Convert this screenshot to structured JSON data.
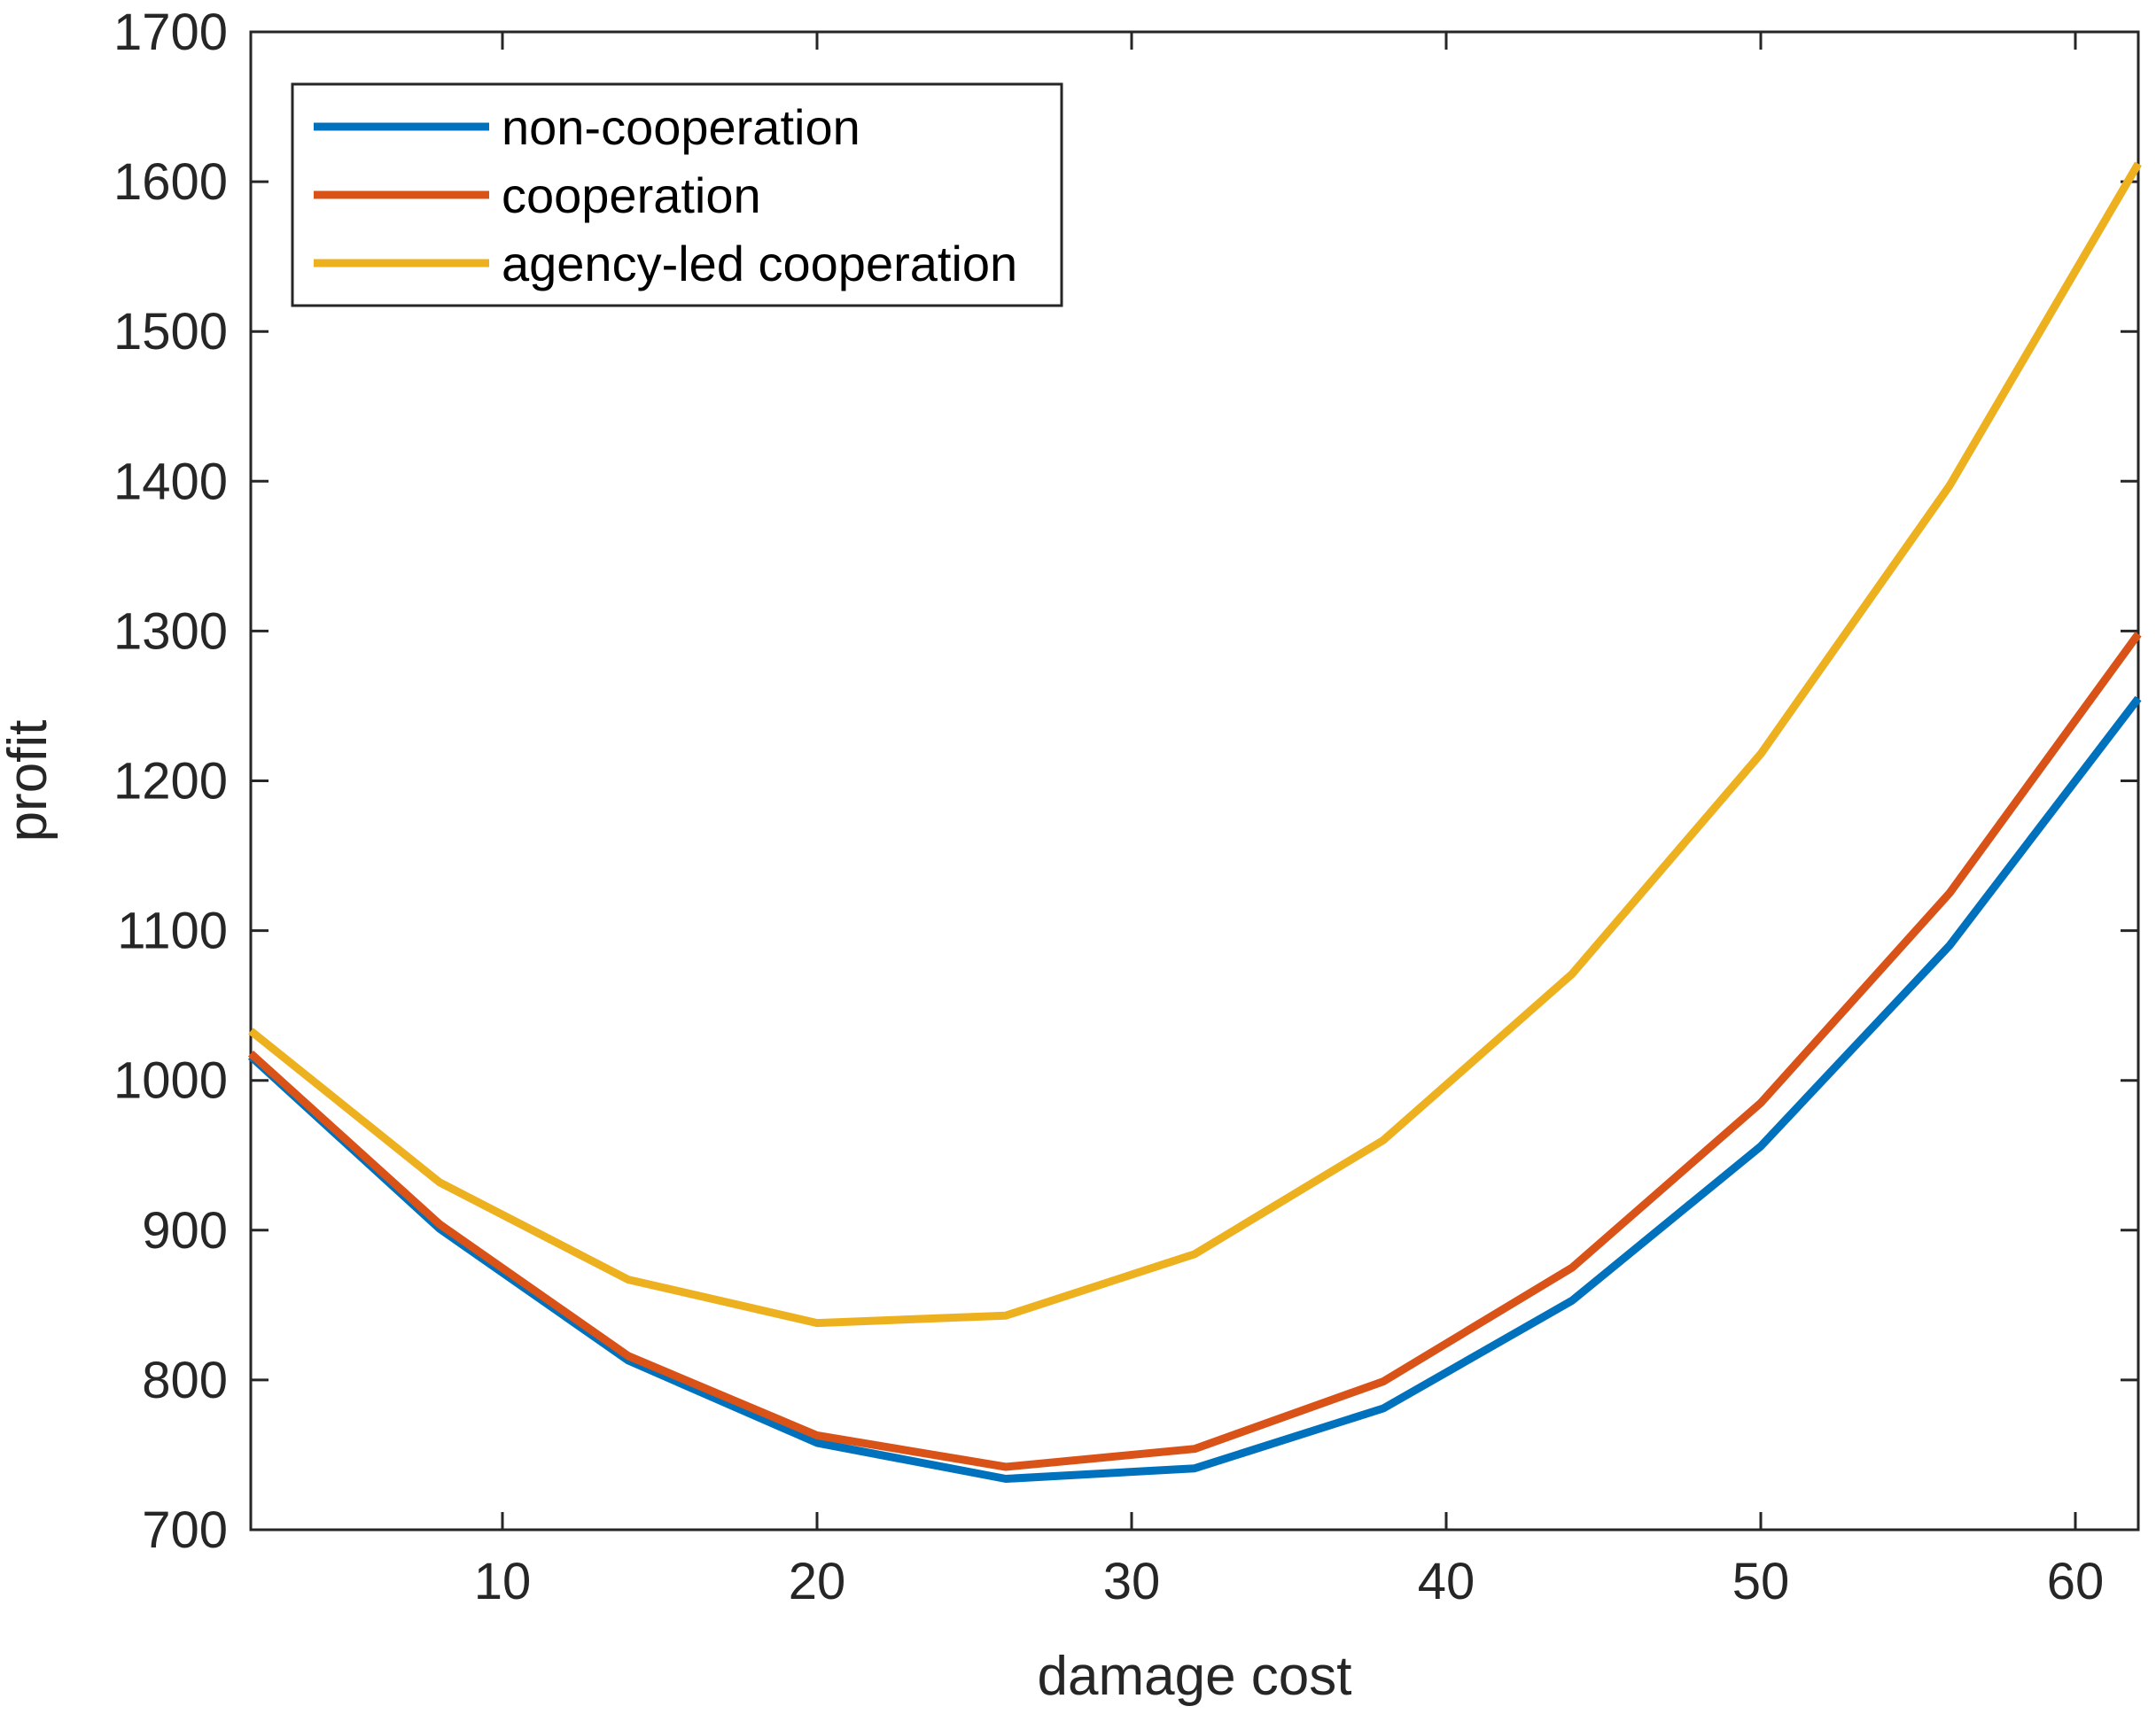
{
  "chart_data": {
    "type": "line",
    "title": "",
    "xlabel": "damage cost",
    "ylabel": "profit",
    "xlim": [
      2,
      62
    ],
    "ylim": [
      700,
      1700
    ],
    "xticks": [
      10,
      20,
      30,
      40,
      50,
      60
    ],
    "yticks": [
      700,
      800,
      900,
      1000,
      1100,
      1200,
      1300,
      1400,
      1500,
      1600,
      1700
    ],
    "grid": false,
    "legend_position": "top-left",
    "x": [
      2,
      8,
      14,
      20,
      26,
      32,
      38,
      44,
      50,
      56,
      62
    ],
    "series": [
      {
        "name": "non-cooperation",
        "color": "#0072BD",
        "values": [
          1016,
          901,
          813,
          758,
          734,
          741,
          781,
          853,
          956,
          1090,
          1255
        ]
      },
      {
        "name": "cooperation",
        "color": "#D95319",
        "values": [
          1018,
          904,
          816,
          763,
          742,
          754,
          799,
          875,
          985,
          1125,
          1298
        ]
      },
      {
        "name": "agency-led cooperation",
        "color": "#EDB120",
        "values": [
          1033,
          932,
          867,
          838,
          843,
          884,
          960,
          1071,
          1218,
          1397,
          1612
        ]
      }
    ]
  }
}
